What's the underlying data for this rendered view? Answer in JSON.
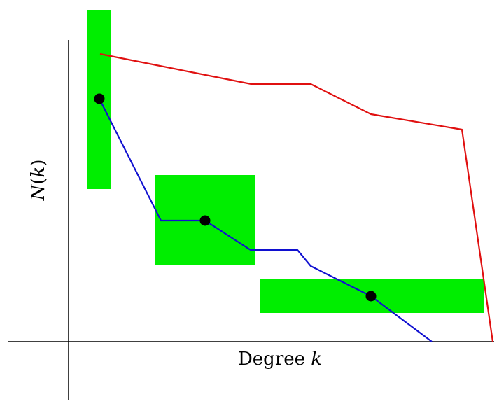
{
  "labels": {
    "x_prefix": "Degree ",
    "x_var": "k",
    "y_var_n": "N",
    "y_open": "(",
    "y_var_k": "k",
    "y_close": ")"
  },
  "colors": {
    "background": "#ffffff",
    "axis": "#000000",
    "highlight": "#00ee00",
    "red_curve": "#e01010",
    "blue_curve": "#1010d0",
    "points": "#000000"
  }
}
